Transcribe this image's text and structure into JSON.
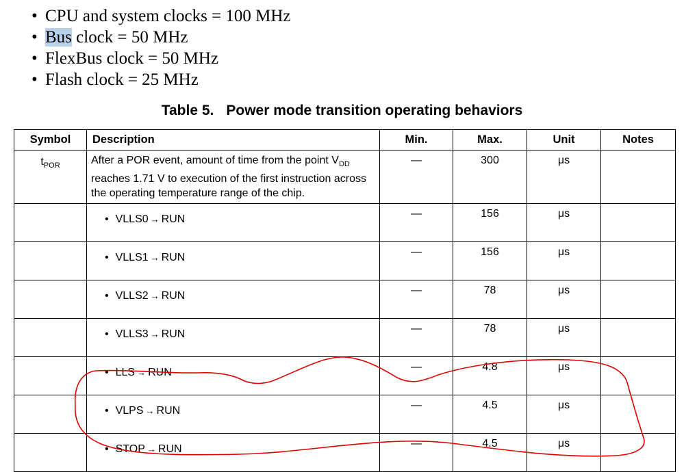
{
  "bullets": [
    {
      "text": "CPU and system clocks = 100 MHz"
    },
    {
      "highlight": "Bus",
      "rest": " clock = 50 MHz"
    },
    {
      "text": "FlexBus clock = 50 MHz"
    },
    {
      "text": "Flash clock = 25 MHz"
    }
  ],
  "bullet_glyph": "•",
  "table": {
    "caption_number": "Table 5.",
    "caption_title": "Power mode transition operating behaviors",
    "headers": {
      "symbol": "Symbol",
      "description": "Description",
      "min": "Min.",
      "max": "Max.",
      "unit": "Unit",
      "notes": "Notes"
    },
    "first_row": {
      "symbol_main": "t",
      "symbol_sub": "POR",
      "desc_part1": "After a POR event, amount of time from the point V",
      "desc_sub": "DD",
      "desc_part2": " reaches 1.71 V to execution of the first instruction across the operating temperature range of the chip.",
      "min": "—",
      "max": "300",
      "unit": "μs"
    },
    "rows": [
      {
        "from": "VLLS0",
        "to": "RUN",
        "min": "—",
        "max": "156",
        "unit": "μs"
      },
      {
        "from": "VLLS1",
        "to": "RUN",
        "min": "—",
        "max": "156",
        "unit": "μs"
      },
      {
        "from": "VLLS2",
        "to": "RUN",
        "min": "—",
        "max": "78",
        "unit": "μs"
      },
      {
        "from": "VLLS3",
        "to": "RUN",
        "min": "—",
        "max": "78",
        "unit": "μs"
      },
      {
        "from": "LLS",
        "to": "RUN",
        "min": "—",
        "max": "4.8",
        "unit": "μs"
      },
      {
        "from": "VLPS",
        "to": "RUN",
        "min": "—",
        "max": "4.5",
        "unit": "μs"
      },
      {
        "from": "STOP",
        "to": "RUN",
        "min": "—",
        "max": "4.5",
        "unit": "μs"
      }
    ],
    "arrow_glyph": "→"
  },
  "colors": {
    "highlight": "#b9d1ea",
    "annotation": "#e00000"
  }
}
